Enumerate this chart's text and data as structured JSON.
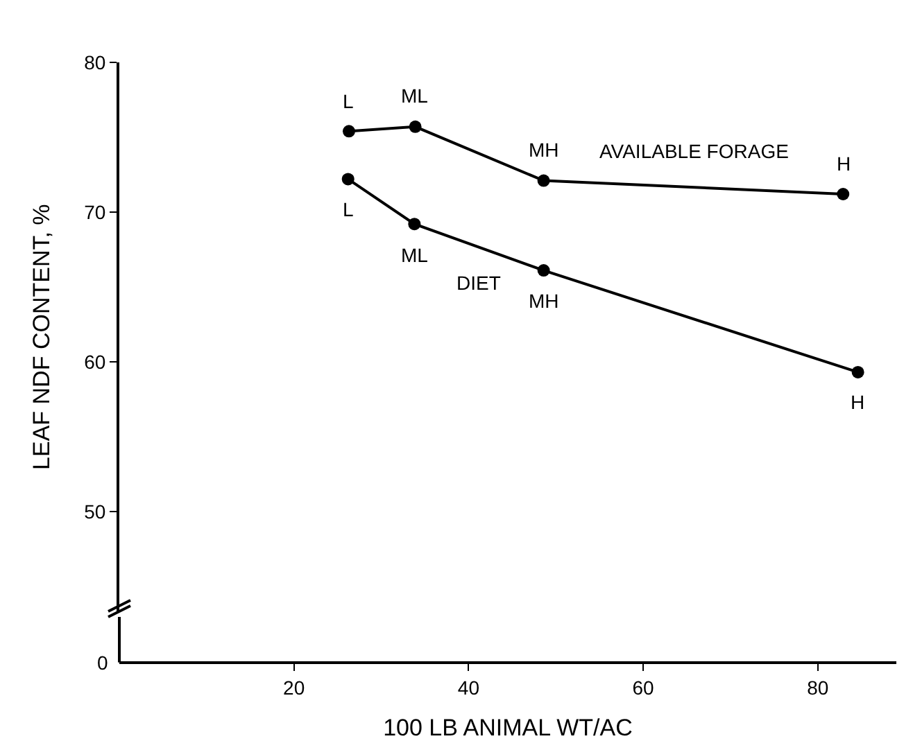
{
  "chart_data": {
    "type": "line",
    "xlabel": "100 LB ANIMAL WT/AC",
    "ylabel": "LEAF NDF CONTENT, %",
    "xlim": [
      0,
      89
    ],
    "xticks": [
      20,
      40,
      60,
      80
    ],
    "ylim": [
      43.3,
      80
    ],
    "yticks": [
      50,
      60,
      70,
      80
    ],
    "grid": false,
    "legend": false,
    "marker": "circle",
    "line_style": "solid",
    "series": [
      {
        "name": "AVAILABLE FORAGE",
        "color": "#000000",
        "x": [
          26.3,
          33.9,
          48.6,
          82.9
        ],
        "values": [
          75.4,
          75.7,
          72.1,
          71.2
        ]
      },
      {
        "name": "DIET",
        "color": "#000000",
        "x": [
          26.2,
          33.8,
          48.6,
          84.6
        ],
        "values": [
          72.2,
          69.2,
          66.1,
          59.3
        ]
      }
    ],
    "annotations": [
      "0",
      {
        "text": "L",
        "x": 26.3,
        "y": 75.4
      },
      {
        "text": "ML",
        "x": 33.9,
        "y": 75.7
      },
      {
        "text": "MH",
        "x": 48.6,
        "y": 72.1
      },
      {
        "text": "H",
        "x": 82.9,
        "y": 71.2
      },
      {
        "text": "L",
        "x": 26.2,
        "y": 72.2
      },
      {
        "text": "ML",
        "x": 33.8,
        "y": 69.2
      },
      {
        "text": "MH",
        "x": 48.6,
        "y": 66.1
      },
      {
        "text": "H",
        "x": 84.6,
        "y": 59.3
      }
    ]
  }
}
